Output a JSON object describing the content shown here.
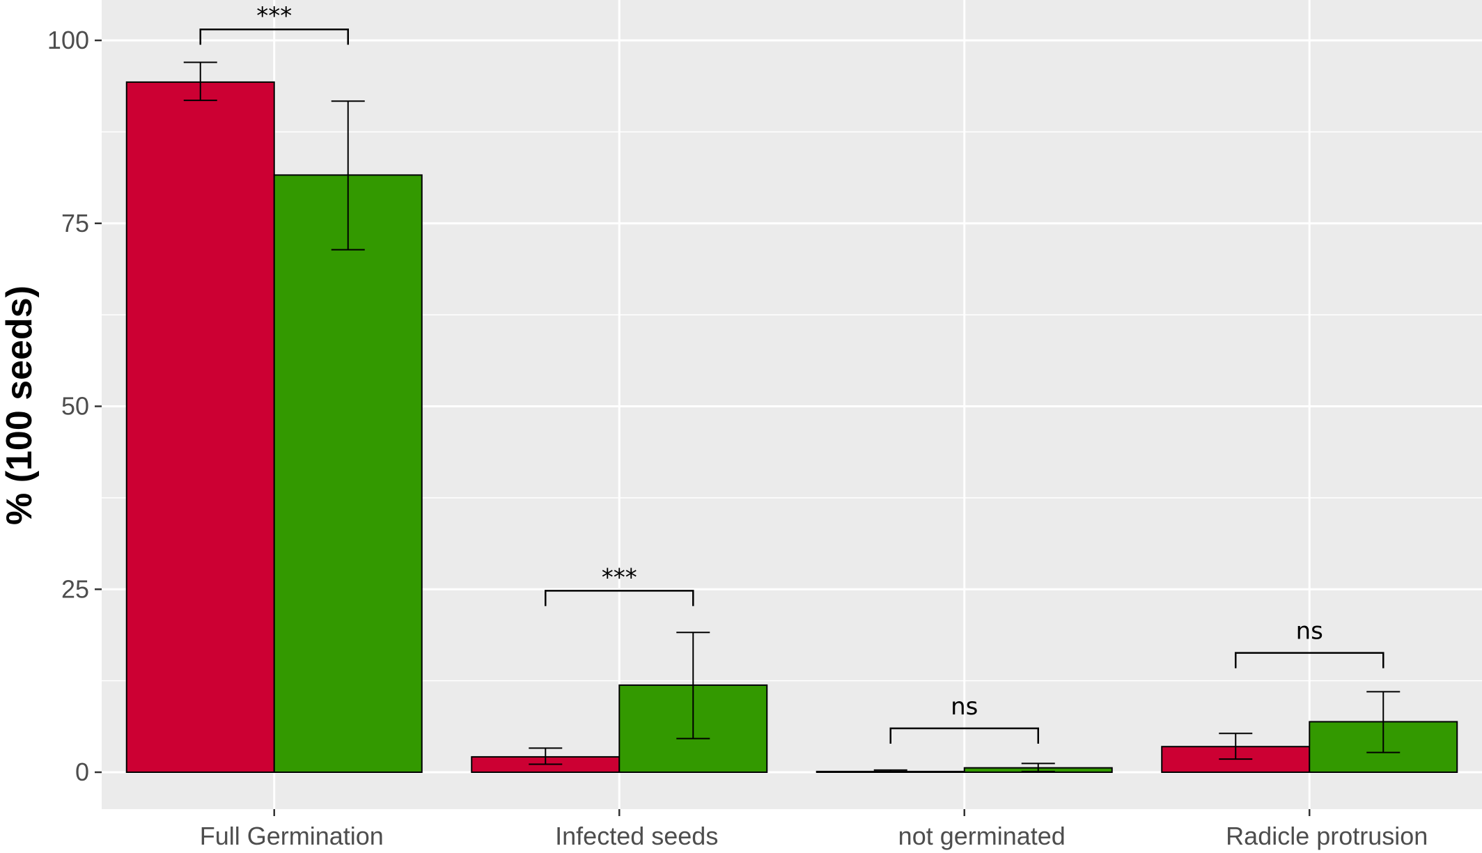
{
  "colors": {
    "panel": "#ebebeb",
    "grid": "#ffffff",
    "series1": "#cc0033",
    "series2": "#339900",
    "outline": "#000000"
  },
  "chart_data": {
    "type": "bar",
    "title": "",
    "xlabel": "",
    "ylabel": "% (100 seeds)",
    "ylim": [
      -5,
      105
    ],
    "yticks": [
      0,
      25,
      50,
      75,
      100
    ],
    "grid": true,
    "legend": "none",
    "categories": [
      "Full Germination",
      "Infected seeds",
      "not germinated",
      "Radicle protrusion"
    ],
    "series": [
      {
        "color": "#cc0033",
        "values": [
          94.3,
          2.1,
          0.1,
          3.5
        ],
        "error_low": [
          91.8,
          1.1,
          0.0,
          1.8
        ],
        "error_high": [
          97.0,
          3.3,
          0.3,
          5.3
        ]
      },
      {
        "color": "#339900",
        "values": [
          81.6,
          11.9,
          0.6,
          6.9
        ],
        "error_low": [
          71.4,
          4.6,
          0.1,
          2.7
        ],
        "error_high": [
          91.7,
          19.1,
          1.2,
          11.0
        ]
      }
    ],
    "annotations": [
      {
        "category": "Full Germination",
        "label": "***",
        "y": 101.5
      },
      {
        "category": "Infected seeds",
        "label": "***",
        "y": 24.8
      },
      {
        "category": "not germinated",
        "label": "ns",
        "y": 6.0
      },
      {
        "category": "Radicle protrusion",
        "label": "ns",
        "y": 16.3
      }
    ]
  }
}
